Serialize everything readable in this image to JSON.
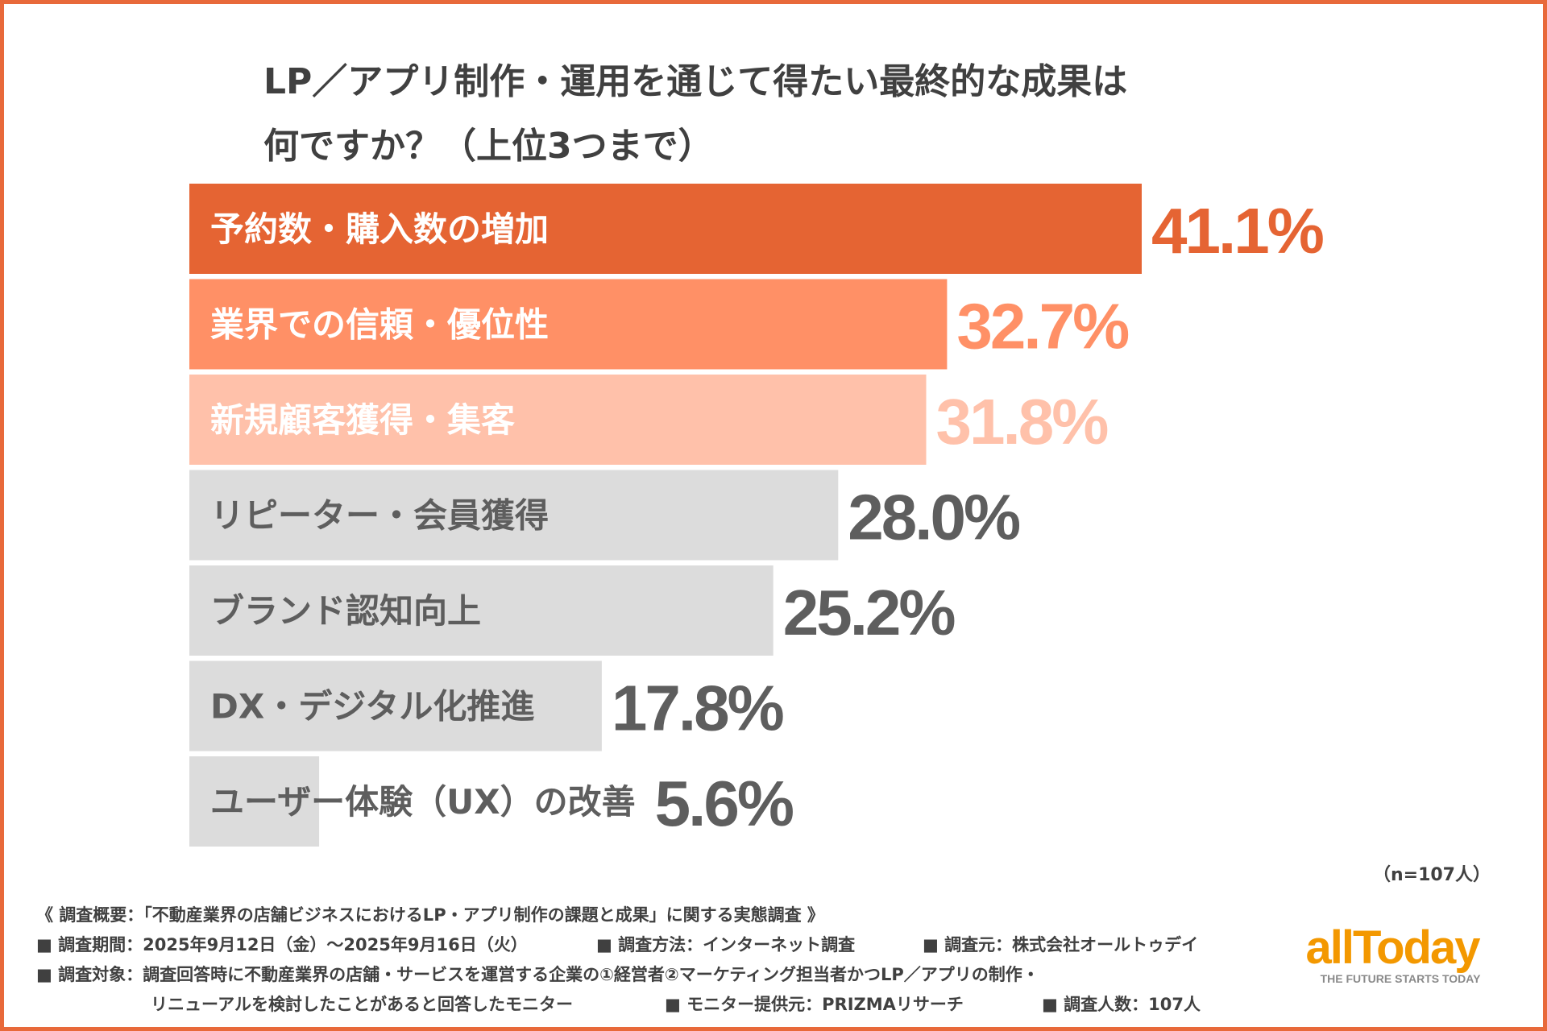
{
  "title": {
    "line1": "LP／アプリ制作・運用を通じて得たい最終的な成果は",
    "line2": "何ですか？（上位3つまで）"
  },
  "chart_data": {
    "type": "bar",
    "orientation": "horizontal",
    "title": "LP／アプリ制作・運用を通じて得たい最終的な成果は何ですか？（上位3つまで）",
    "categories": [
      "予約数・購入数の増加",
      "業界での信頼・優位性",
      "新規顧客獲得・集客",
      "リピーター・会員獲得",
      "ブランド認知向上",
      "DX・デジタル化推進",
      "ユーザー体験（UX）の改善"
    ],
    "values": [
      41.1,
      32.7,
      31.8,
      28.0,
      25.2,
      17.8,
      5.6
    ],
    "value_labels": [
      "41.1%",
      "32.7%",
      "31.8%",
      "28.0%",
      "25.2%",
      "17.8%",
      "5.6%"
    ],
    "unit": "%",
    "xlim": [
      0,
      41.1
    ],
    "colors": [
      "#E56433",
      "#FF9066",
      "#FFC1AA",
      "#DCDCDC",
      "#DCDCDC",
      "#DCDCDC",
      "#DCDCDC"
    ],
    "inside_label_colors": [
      "#FFFFFF",
      "#FFFFFF",
      "#FFFFFF",
      "#5E5E5E",
      "#5E5E5E",
      "#5E5E5E",
      "#5E5E5E"
    ],
    "value_label_colors": [
      "#E56433",
      "#FF9066",
      "#FFC1AA",
      "#5E5E5E",
      "#5E5E5E",
      "#5E5E5E",
      "#5E5E5E"
    ]
  },
  "sample_note": "（n=107人）",
  "survey": {
    "overview": "《 調査概要：「不動産業界の店舗ビジネスにおけるLP・アプリ制作の課題と成果」に関する実態調査 》",
    "period": "■ 調査期間：2025年9月12日（金）〜2025年9月16日（火）",
    "method": "■ 調査方法：インターネット調査",
    "org": "■ 調査元：株式会社オールトゥデイ",
    "target_1": "■ 調査対象：調査回答時に不動産業界の店舗・サービスを運営する企業の①経営者②マーケティング担当者かつLP／アプリの制作・",
    "target_2": "リニューアルを検討したことがあると回答したモニター",
    "provider": "■ モニター提供元：PRIZMAリサーチ",
    "count": "■ 調査人数：107人"
  },
  "logo": {
    "text": "allToday",
    "tagline": "THE FUTURE STARTS TODAY"
  },
  "theme": {
    "border": "#E8693A",
    "text": "#404040"
  }
}
